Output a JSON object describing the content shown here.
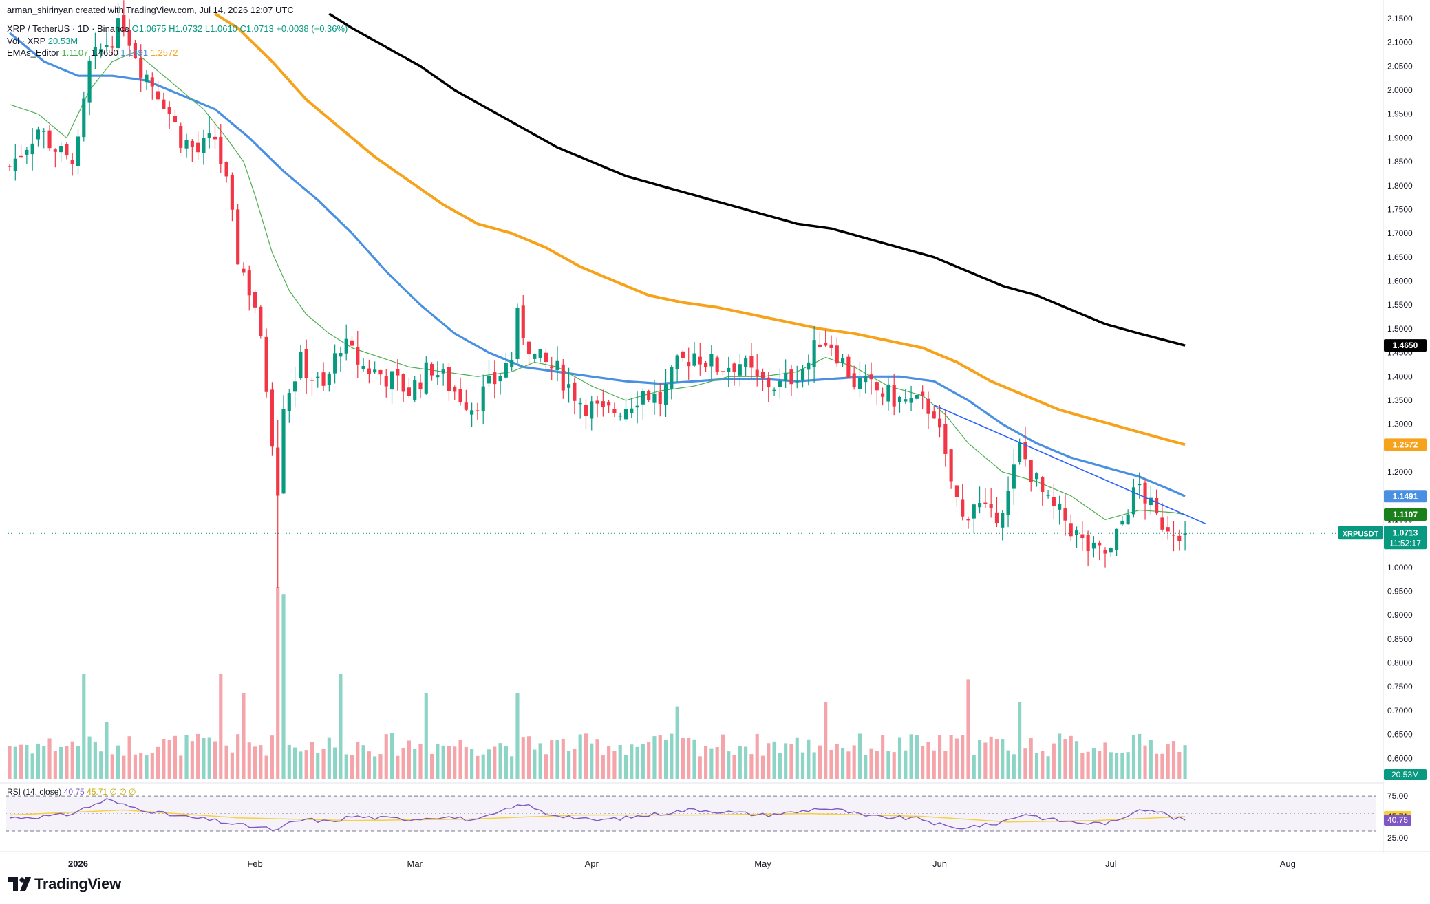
{
  "header": {
    "attribution": "arman_shirinyan created with TradingView.com, Jul 14, 2026 12:07 UTC",
    "symbol": "XRP / TetherUS · 1D · Binance",
    "ohlc": {
      "o": "O1.0675",
      "h": "H1.0732",
      "l": "L1.0610",
      "c": "C1.0713",
      "chg": "+0.0038 (+0.36%)"
    },
    "vol_label": "Vol · XRP",
    "vol_value": "20.53M",
    "ema_label": "EMAs_Editor",
    "ema_values": [
      "1.1107",
      "1.4650",
      "1.1491",
      "1.2572"
    ]
  },
  "rsi_header": {
    "label": "RSI (14, close)",
    "value": "40.75",
    "rest": "45.71  ∅  ∅  ∅"
  },
  "brand": {
    "logo_text": "TradingView"
  },
  "colors": {
    "up": "#089981",
    "down": "#f23645",
    "ema20": "#4caf50",
    "ema50": "#4a90e2",
    "ema100": "#f7a21b",
    "ema200": "#000000",
    "rsi": "#7e57c2",
    "rsi_ma": "#f5d142",
    "trend": "#2962ff"
  },
  "chart_data": {
    "type": "candlestick",
    "symbol": "XRPUSDT",
    "ylim": [
      0.56,
      2.16
    ],
    "y_ticks": [
      "2.1500",
      "2.1000",
      "2.0500",
      "2.0000",
      "1.9500",
      "1.9000",
      "1.8500",
      "1.8000",
      "1.7500",
      "1.7000",
      "1.6500",
      "1.6000",
      "1.5500",
      "1.5000",
      "1.4500",
      "1.4000",
      "1.3500",
      "1.3000",
      "1.2500",
      "1.2000",
      "1.1500",
      "1.1000",
      "1.0500",
      "1.0000",
      "0.9500",
      "0.9000",
      "0.8500",
      "0.8000",
      "0.7500",
      "0.7000",
      "0.6500",
      "0.6000"
    ],
    "x_labels": [
      {
        "label": "2026",
        "day": 12
      },
      {
        "label": "Feb",
        "day": 43
      },
      {
        "label": "Mar",
        "day": 71
      },
      {
        "label": "Apr",
        "day": 102
      },
      {
        "label": "May",
        "day": 132
      },
      {
        "label": "Jun",
        "day": 163
      },
      {
        "label": "Jul",
        "day": 193
      },
      {
        "label": "Aug",
        "day": 224
      }
    ],
    "price_anchors": [
      [
        0,
        1.84
      ],
      [
        5,
        1.92
      ],
      [
        10,
        1.85
      ],
      [
        12,
        1.88
      ],
      [
        14,
        2.05
      ],
      [
        17,
        2.1
      ],
      [
        20,
        2.14
      ],
      [
        23,
        2.05
      ],
      [
        27,
        1.98
      ],
      [
        30,
        1.9
      ],
      [
        33,
        1.87
      ],
      [
        36,
        1.9
      ],
      [
        38,
        1.8
      ],
      [
        40,
        1.65
      ],
      [
        43,
        1.55
      ],
      [
        45,
        1.38
      ],
      [
        47,
        1.17
      ],
      [
        48,
        1.35
      ],
      [
        51,
        1.43
      ],
      [
        55,
        1.37
      ],
      [
        58,
        1.47
      ],
      [
        62,
        1.42
      ],
      [
        66,
        1.4
      ],
      [
        70,
        1.37
      ],
      [
        74,
        1.42
      ],
      [
        78,
        1.37
      ],
      [
        81,
        1.34
      ],
      [
        85,
        1.39
      ],
      [
        88,
        1.44
      ],
      [
        89,
        1.52
      ],
      [
        92,
        1.44
      ],
      [
        96,
        1.41
      ],
      [
        100,
        1.35
      ],
      [
        104,
        1.32
      ],
      [
        108,
        1.34
      ],
      [
        111,
        1.37
      ],
      [
        114,
        1.35
      ],
      [
        117,
        1.42
      ],
      [
        120,
        1.45
      ],
      [
        124,
        1.42
      ],
      [
        128,
        1.43
      ],
      [
        131,
        1.39
      ],
      [
        135,
        1.38
      ],
      [
        140,
        1.43
      ],
      [
        142,
        1.48
      ],
      [
        144,
        1.47
      ],
      [
        146,
        1.43
      ],
      [
        148,
        1.39
      ],
      [
        152,
        1.37
      ],
      [
        156,
        1.35
      ],
      [
        160,
        1.34
      ],
      [
        162,
        1.33
      ],
      [
        164,
        1.22
      ],
      [
        167,
        1.1
      ],
      [
        169,
        1.14
      ],
      [
        172,
        1.1
      ],
      [
        175,
        1.15
      ],
      [
        177,
        1.25
      ],
      [
        179,
        1.2
      ],
      [
        182,
        1.13
      ],
      [
        185,
        1.1
      ],
      [
        188,
        1.05
      ],
      [
        190,
        1.03
      ],
      [
        193,
        1.03
      ],
      [
        196,
        1.13
      ],
      [
        198,
        1.17
      ],
      [
        201,
        1.1
      ],
      [
        203,
        1.09
      ],
      [
        205,
        1.08
      ],
      [
        206,
        1.0713
      ]
    ],
    "ema_anchors": {
      "ema20": [
        [
          0,
          1.97
        ],
        [
          5,
          1.95
        ],
        [
          10,
          1.9
        ],
        [
          14,
          2.0
        ],
        [
          18,
          2.06
        ],
        [
          22,
          2.08
        ],
        [
          26,
          2.04
        ],
        [
          30,
          2.0
        ],
        [
          34,
          1.96
        ],
        [
          38,
          1.9
        ],
        [
          41,
          1.85
        ],
        [
          43,
          1.78
        ],
        [
          46,
          1.66
        ],
        [
          49,
          1.58
        ],
        [
          52,
          1.53
        ],
        [
          56,
          1.49
        ],
        [
          60,
          1.46
        ],
        [
          65,
          1.44
        ],
        [
          70,
          1.42
        ],
        [
          76,
          1.41
        ],
        [
          82,
          1.4
        ],
        [
          88,
          1.41
        ],
        [
          92,
          1.43
        ],
        [
          96,
          1.42
        ],
        [
          102,
          1.38
        ],
        [
          108,
          1.35
        ],
        [
          114,
          1.37
        ],
        [
          120,
          1.38
        ],
        [
          126,
          1.4
        ],
        [
          132,
          1.4
        ],
        [
          138,
          1.41
        ],
        [
          143,
          1.44
        ],
        [
          148,
          1.42
        ],
        [
          154,
          1.38
        ],
        [
          160,
          1.36
        ],
        [
          164,
          1.32
        ],
        [
          168,
          1.26
        ],
        [
          174,
          1.2
        ],
        [
          180,
          1.18
        ],
        [
          186,
          1.15
        ],
        [
          192,
          1.1
        ],
        [
          198,
          1.12
        ],
        [
          204,
          1.115
        ],
        [
          206,
          1.1107
        ]
      ],
      "ema50": [
        [
          0,
          2.12
        ],
        [
          6,
          2.06
        ],
        [
          12,
          2.03
        ],
        [
          18,
          2.03
        ],
        [
          24,
          2.02
        ],
        [
          30,
          1.99
        ],
        [
          36,
          1.96
        ],
        [
          42,
          1.9
        ],
        [
          48,
          1.83
        ],
        [
          54,
          1.77
        ],
        [
          60,
          1.7
        ],
        [
          66,
          1.62
        ],
        [
          72,
          1.55
        ],
        [
          78,
          1.49
        ],
        [
          84,
          1.45
        ],
        [
          90,
          1.42
        ],
        [
          96,
          1.41
        ],
        [
          102,
          1.4
        ],
        [
          108,
          1.39
        ],
        [
          114,
          1.385
        ],
        [
          120,
          1.39
        ],
        [
          126,
          1.395
        ],
        [
          132,
          1.395
        ],
        [
          138,
          1.39
        ],
        [
          144,
          1.395
        ],
        [
          150,
          1.4
        ],
        [
          156,
          1.4
        ],
        [
          162,
          1.39
        ],
        [
          168,
          1.35
        ],
        [
          174,
          1.3
        ],
        [
          180,
          1.26
        ],
        [
          186,
          1.23
        ],
        [
          192,
          1.21
        ],
        [
          198,
          1.19
        ],
        [
          204,
          1.16
        ],
        [
          206,
          1.1491
        ]
      ],
      "ema100": [
        [
          36,
          2.16
        ],
        [
          40,
          2.13
        ],
        [
          46,
          2.06
        ],
        [
          52,
          1.98
        ],
        [
          58,
          1.92
        ],
        [
          64,
          1.86
        ],
        [
          70,
          1.81
        ],
        [
          76,
          1.76
        ],
        [
          82,
          1.72
        ],
        [
          88,
          1.7
        ],
        [
          94,
          1.67
        ],
        [
          100,
          1.63
        ],
        [
          106,
          1.6
        ],
        [
          112,
          1.57
        ],
        [
          118,
          1.555
        ],
        [
          124,
          1.545
        ],
        [
          130,
          1.53
        ],
        [
          136,
          1.515
        ],
        [
          142,
          1.5
        ],
        [
          148,
          1.49
        ],
        [
          154,
          1.475
        ],
        [
          160,
          1.46
        ],
        [
          166,
          1.43
        ],
        [
          172,
          1.39
        ],
        [
          178,
          1.36
        ],
        [
          184,
          1.33
        ],
        [
          190,
          1.31
        ],
        [
          196,
          1.29
        ],
        [
          202,
          1.27
        ],
        [
          206,
          1.2572
        ]
      ],
      "ema200": [
        [
          56,
          2.16
        ],
        [
          60,
          2.13
        ],
        [
          66,
          2.09
        ],
        [
          72,
          2.05
        ],
        [
          78,
          2.0
        ],
        [
          84,
          1.96
        ],
        [
          90,
          1.92
        ],
        [
          96,
          1.88
        ],
        [
          102,
          1.85
        ],
        [
          108,
          1.82
        ],
        [
          114,
          1.8
        ],
        [
          120,
          1.78
        ],
        [
          126,
          1.76
        ],
        [
          132,
          1.74
        ],
        [
          138,
          1.72
        ],
        [
          144,
          1.71
        ],
        [
          150,
          1.69
        ],
        [
          156,
          1.67
        ],
        [
          162,
          1.65
        ],
        [
          168,
          1.62
        ],
        [
          174,
          1.59
        ],
        [
          180,
          1.57
        ],
        [
          186,
          1.54
        ],
        [
          192,
          1.51
        ],
        [
          198,
          1.49
        ],
        [
          206,
          1.465
        ]
      ]
    },
    "rsi_anchors": [
      [
        0,
        44
      ],
      [
        6,
        46
      ],
      [
        10,
        48
      ],
      [
        14,
        60
      ],
      [
        17,
        70
      ],
      [
        20,
        62
      ],
      [
        24,
        55
      ],
      [
        28,
        48
      ],
      [
        32,
        44
      ],
      [
        36,
        40
      ],
      [
        40,
        34
      ],
      [
        44,
        30
      ],
      [
        47,
        26
      ],
      [
        49,
        36
      ],
      [
        52,
        42
      ],
      [
        56,
        38
      ],
      [
        60,
        46
      ],
      [
        64,
        44
      ],
      [
        70,
        42
      ],
      [
        76,
        46
      ],
      [
        82,
        40
      ],
      [
        88,
        58
      ],
      [
        90,
        64
      ],
      [
        94,
        50
      ],
      [
        98,
        46
      ],
      [
        102,
        40
      ],
      [
        108,
        44
      ],
      [
        114,
        50
      ],
      [
        120,
        56
      ],
      [
        126,
        52
      ],
      [
        132,
        48
      ],
      [
        138,
        52
      ],
      [
        142,
        58
      ],
      [
        146,
        54
      ],
      [
        150,
        46
      ],
      [
        156,
        44
      ],
      [
        160,
        42
      ],
      [
        163,
        34
      ],
      [
        166,
        28
      ],
      [
        168,
        32
      ],
      [
        172,
        34
      ],
      [
        176,
        44
      ],
      [
        178,
        50
      ],
      [
        182,
        42
      ],
      [
        186,
        38
      ],
      [
        190,
        36
      ],
      [
        194,
        38
      ],
      [
        198,
        58
      ],
      [
        201,
        54
      ],
      [
        204,
        44
      ],
      [
        206,
        40.75
      ]
    ],
    "rsi_ma_anchors": [
      [
        0,
        48
      ],
      [
        20,
        55
      ],
      [
        40,
        44
      ],
      [
        60,
        40
      ],
      [
        80,
        42
      ],
      [
        100,
        48
      ],
      [
        120,
        48
      ],
      [
        140,
        50
      ],
      [
        160,
        46
      ],
      [
        175,
        38
      ],
      [
        190,
        40
      ],
      [
        206,
        45.71
      ]
    ],
    "volume_spikes": [
      [
        13,
        0.55
      ],
      [
        17,
        0.3
      ],
      [
        37,
        0.55
      ],
      [
        41,
        0.45
      ],
      [
        47,
        1.0
      ],
      [
        48,
        0.96
      ],
      [
        58,
        0.55
      ],
      [
        73,
        0.45
      ],
      [
        89,
        0.45
      ],
      [
        117,
        0.38
      ],
      [
        143,
        0.4
      ],
      [
        168,
        0.52
      ],
      [
        177,
        0.4
      ]
    ],
    "trendline": [
      [
        162,
        1.34
      ],
      [
        206,
        1.1
      ]
    ],
    "last_price": 1.0713,
    "levels": [
      {
        "label": "1.4650",
        "value": 1.465,
        "color": "#000000"
      },
      {
        "label": "1.2572",
        "value": 1.2572,
        "color": "#f7a21b"
      },
      {
        "label": "1.1491",
        "value": 1.1491,
        "color": "#4a90e2"
      },
      {
        "label": "1.1107",
        "value": 1.1107,
        "color": "#1b7f1b"
      }
    ],
    "last_badge": {
      "symbol": "XRPUSDT",
      "price": "1.0713",
      "timer": "11:52:17"
    },
    "vol_badge": "20.53M",
    "rsi_axis": {
      "top": "75.00",
      "bottom": "25.00",
      "ma_badge": "45.71",
      "rsi_badge": "40.75"
    }
  }
}
